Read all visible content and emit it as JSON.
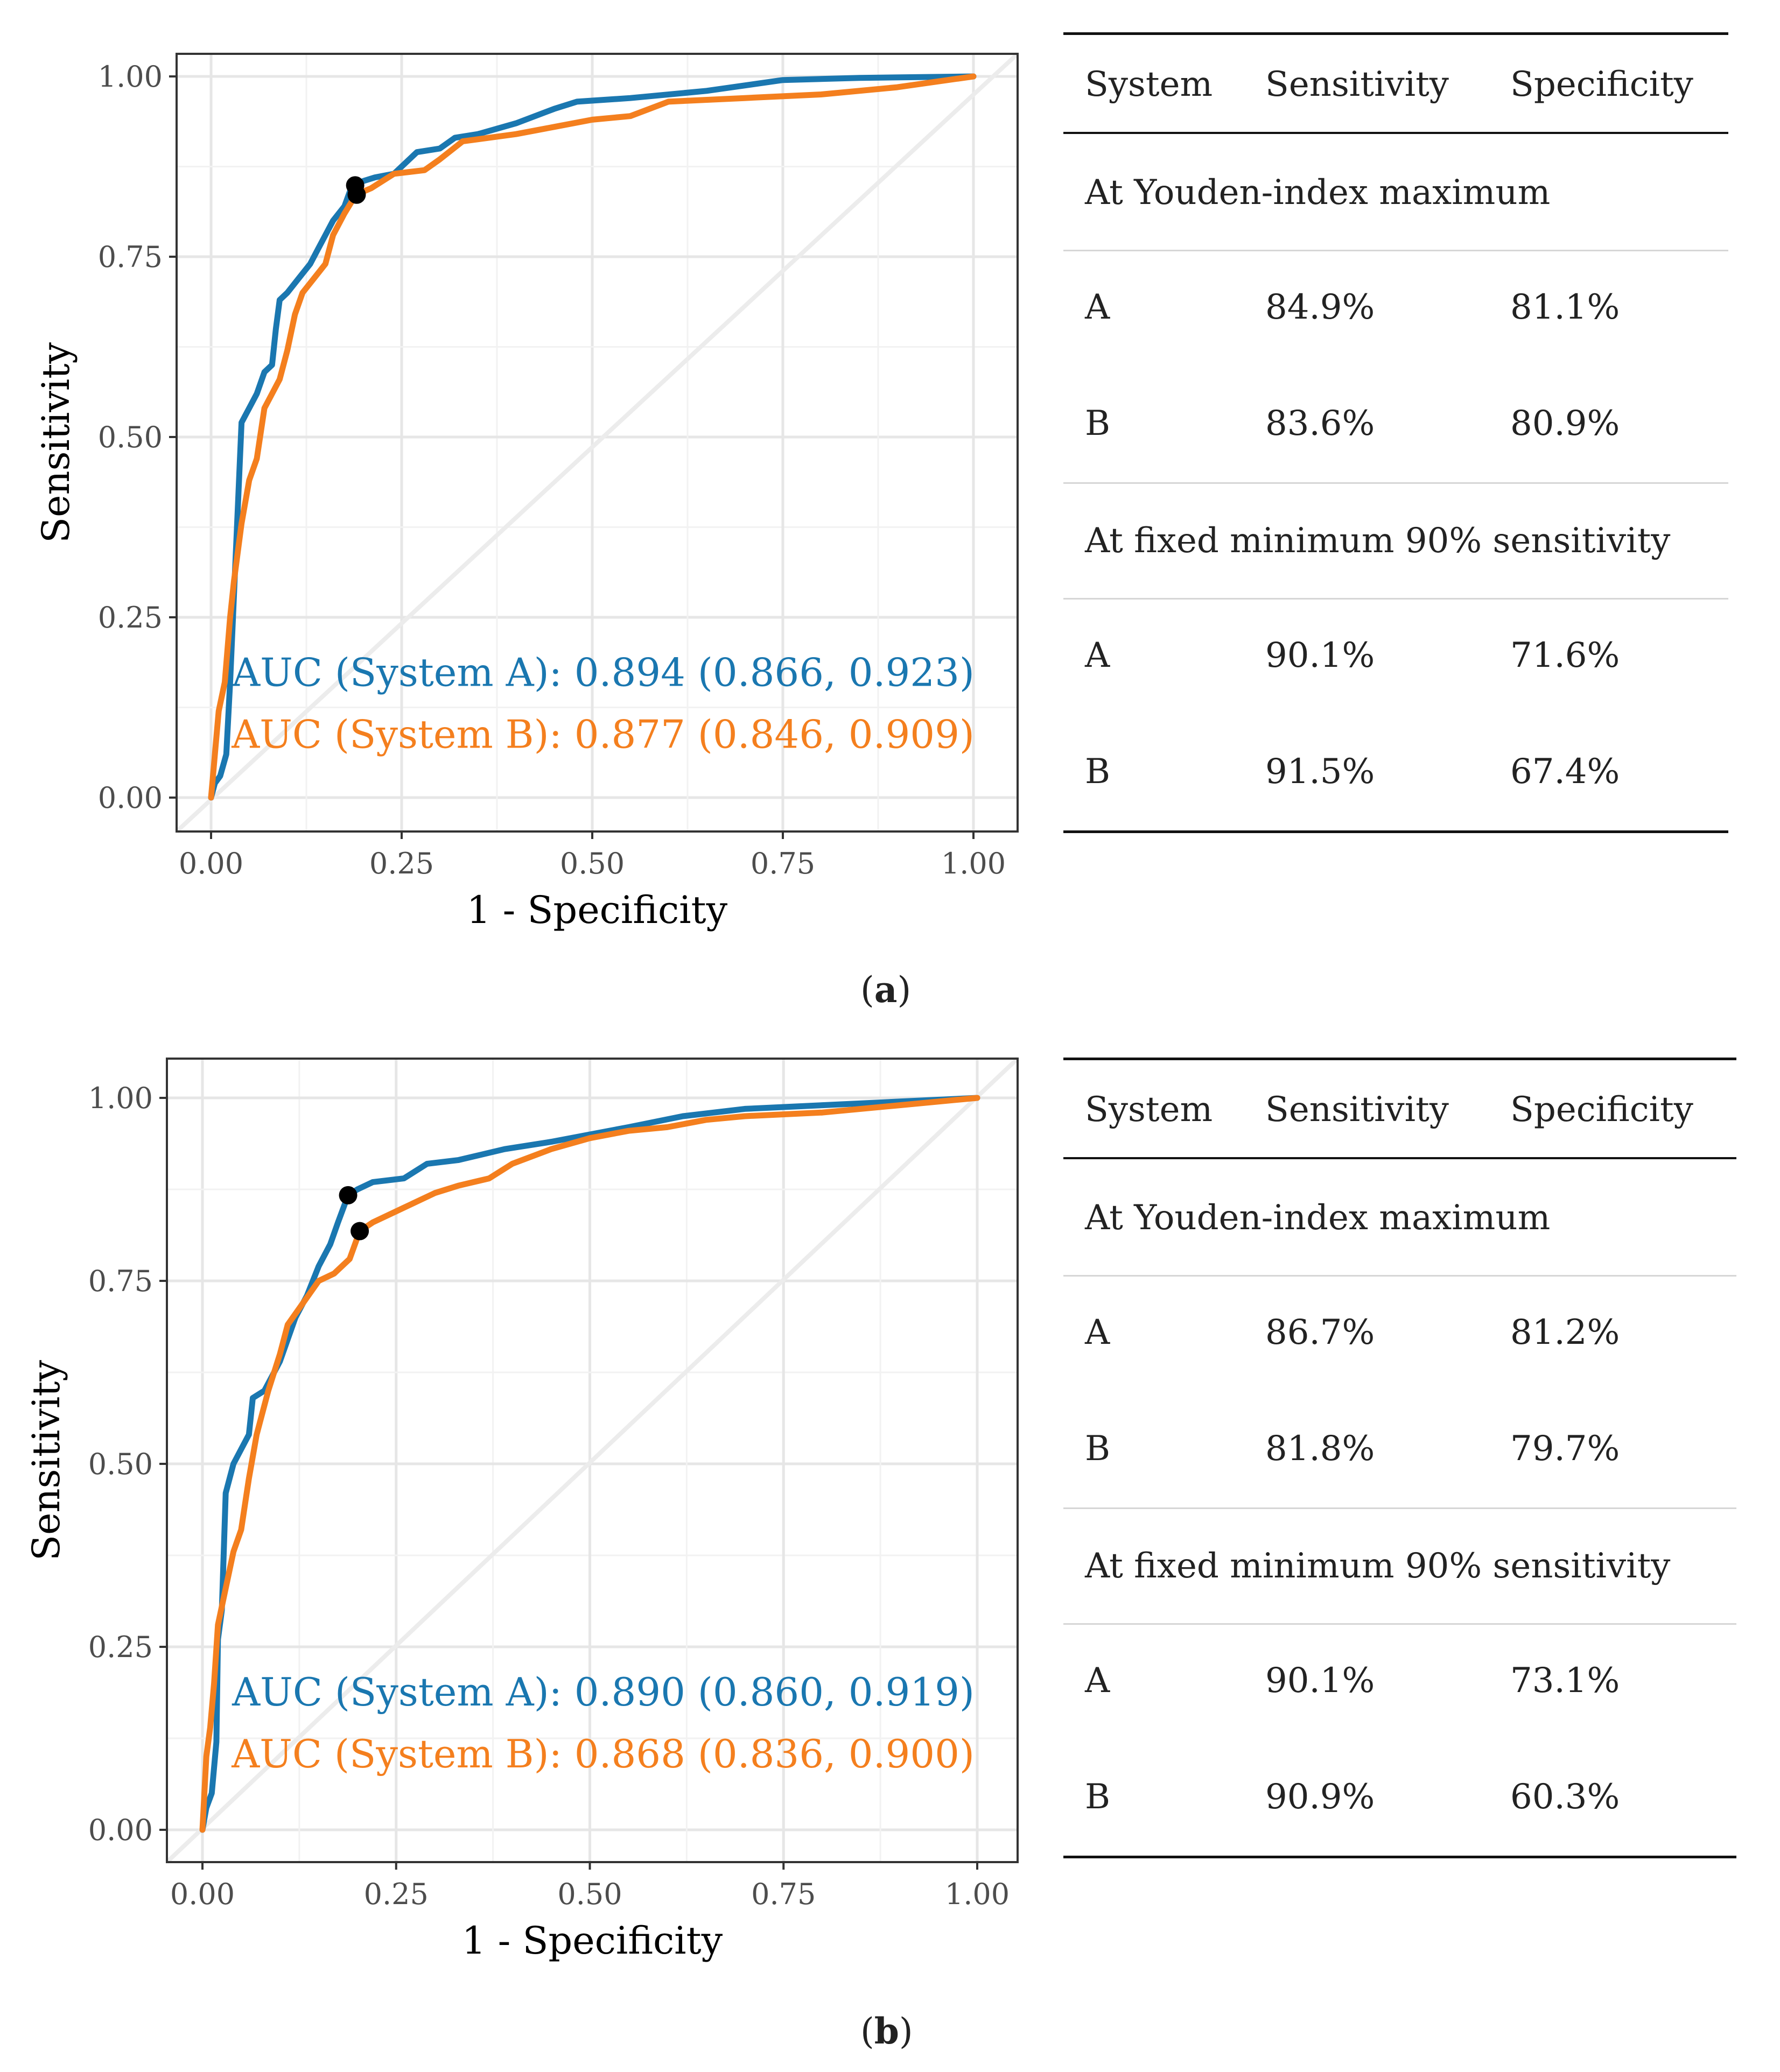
{
  "panels": [
    {
      "label": "a",
      "chart_data": {
        "type": "line",
        "title": "",
        "xlabel": "1 - Specificity",
        "ylabel": "Sensitivity",
        "xlim": [
          0,
          1
        ],
        "ylim": [
          0,
          1
        ],
        "xticks": [
          "0.00",
          "0.25",
          "0.50",
          "0.75",
          "1.00"
        ],
        "yticks": [
          "0.00",
          "0.25",
          "0.50",
          "0.75",
          "1.00"
        ],
        "grid": true,
        "diagonal": true,
        "series": [
          {
            "name": "System A",
            "color": "#1a77b0",
            "points": [
              [
                0,
                0
              ],
              [
                0.005,
                0.02
              ],
              [
                0.012,
                0.03
              ],
              [
                0.02,
                0.06
              ],
              [
                0.025,
                0.16
              ],
              [
                0.03,
                0.28
              ],
              [
                0.035,
                0.4
              ],
              [
                0.04,
                0.52
              ],
              [
                0.05,
                0.54
              ],
              [
                0.06,
                0.56
              ],
              [
                0.07,
                0.59
              ],
              [
                0.08,
                0.6
              ],
              [
                0.085,
                0.65
              ],
              [
                0.09,
                0.69
              ],
              [
                0.1,
                0.7
              ],
              [
                0.115,
                0.72
              ],
              [
                0.13,
                0.74
              ],
              [
                0.14,
                0.76
              ],
              [
                0.15,
                0.78
              ],
              [
                0.16,
                0.8
              ],
              [
                0.175,
                0.82
              ],
              [
                0.185,
                0.849
              ],
              [
                0.2,
                0.855
              ],
              [
                0.215,
                0.86
              ],
              [
                0.24,
                0.865
              ],
              [
                0.27,
                0.895
              ],
              [
                0.3,
                0.9
              ],
              [
                0.32,
                0.915
              ],
              [
                0.35,
                0.92
              ],
              [
                0.4,
                0.935
              ],
              [
                0.45,
                0.955
              ],
              [
                0.48,
                0.965
              ],
              [
                0.55,
                0.97
              ],
              [
                0.65,
                0.98
              ],
              [
                0.75,
                0.995
              ],
              [
                0.85,
                0.998
              ],
              [
                1,
                1
              ]
            ]
          },
          {
            "name": "System B",
            "color": "#f47f1e",
            "points": [
              [
                0,
                0
              ],
              [
                0.005,
                0.06
              ],
              [
                0.01,
                0.12
              ],
              [
                0.018,
                0.16
              ],
              [
                0.025,
                0.25
              ],
              [
                0.03,
                0.3
              ],
              [
                0.04,
                0.38
              ],
              [
                0.05,
                0.44
              ],
              [
                0.06,
                0.47
              ],
              [
                0.07,
                0.54
              ],
              [
                0.08,
                0.56
              ],
              [
                0.09,
                0.58
              ],
              [
                0.1,
                0.62
              ],
              [
                0.11,
                0.67
              ],
              [
                0.12,
                0.7
              ],
              [
                0.135,
                0.72
              ],
              [
                0.15,
                0.74
              ],
              [
                0.16,
                0.78
              ],
              [
                0.175,
                0.81
              ],
              [
                0.19,
                0.836
              ],
              [
                0.21,
                0.845
              ],
              [
                0.24,
                0.865
              ],
              [
                0.28,
                0.87
              ],
              [
                0.3,
                0.885
              ],
              [
                0.33,
                0.91
              ],
              [
                0.4,
                0.92
              ],
              [
                0.45,
                0.93
              ],
              [
                0.5,
                0.94
              ],
              [
                0.55,
                0.945
              ],
              [
                0.6,
                0.965
              ],
              [
                0.7,
                0.97
              ],
              [
                0.8,
                0.975
              ],
              [
                0.9,
                0.985
              ],
              [
                1,
                1
              ]
            ]
          }
        ],
        "markers": [
          {
            "series": "System A",
            "x": 0.189,
            "y": 0.849
          },
          {
            "series": "System B",
            "x": 0.191,
            "y": 0.836
          }
        ],
        "annotations": [
          {
            "text": "AUC (System A): 0.894 (0.866, 0.923)",
            "color": "#1a77b0"
          },
          {
            "text": "AUC (System B): 0.877 (0.846, 0.909)",
            "color": "#f47f1e"
          }
        ]
      },
      "table": {
        "headers": [
          "System",
          "Sensitivity",
          "Specificity"
        ],
        "sections": [
          {
            "title": "At Youden-index maximum",
            "rows": [
              [
                "A",
                "84.9%",
                "81.1%"
              ],
              [
                "B",
                "83.6%",
                "80.9%"
              ]
            ]
          },
          {
            "title": "At fixed minimum 90% sensitivity",
            "rows": [
              [
                "A",
                "90.1%",
                "71.6%"
              ],
              [
                "B",
                "91.5%",
                "67.4%"
              ]
            ]
          }
        ]
      }
    },
    {
      "label": "b",
      "chart_data": {
        "type": "line",
        "title": "",
        "xlabel": "1 - Specificity",
        "ylabel": "Sensitivity",
        "xlim": [
          0,
          1
        ],
        "ylim": [
          0,
          1
        ],
        "xticks": [
          "0.00",
          "0.25",
          "0.50",
          "0.75",
          "1.00"
        ],
        "yticks": [
          "0.00",
          "0.25",
          "0.50",
          "0.75",
          "1.00"
        ],
        "grid": true,
        "diagonal": true,
        "series": [
          {
            "name": "System A",
            "color": "#1a77b0",
            "points": [
              [
                0,
                0
              ],
              [
                0.005,
                0.03
              ],
              [
                0.012,
                0.05
              ],
              [
                0.018,
                0.12
              ],
              [
                0.02,
                0.26
              ],
              [
                0.025,
                0.3
              ],
              [
                0.03,
                0.46
              ],
              [
                0.04,
                0.5
              ],
              [
                0.05,
                0.52
              ],
              [
                0.06,
                0.54
              ],
              [
                0.065,
                0.59
              ],
              [
                0.08,
                0.6
              ],
              [
                0.09,
                0.62
              ],
              [
                0.1,
                0.64
              ],
              [
                0.11,
                0.67
              ],
              [
                0.12,
                0.7
              ],
              [
                0.135,
                0.73
              ],
              [
                0.15,
                0.77
              ],
              [
                0.165,
                0.8
              ],
              [
                0.175,
                0.83
              ],
              [
                0.188,
                0.867
              ],
              [
                0.2,
                0.875
              ],
              [
                0.22,
                0.885
              ],
              [
                0.26,
                0.89
              ],
              [
                0.29,
                0.91
              ],
              [
                0.33,
                0.915
              ],
              [
                0.39,
                0.93
              ],
              [
                0.45,
                0.94
              ],
              [
                0.5,
                0.95
              ],
              [
                0.55,
                0.96
              ],
              [
                0.62,
                0.975
              ],
              [
                0.7,
                0.985
              ],
              [
                0.8,
                0.99
              ],
              [
                0.9,
                0.995
              ],
              [
                1,
                1
              ]
            ]
          },
          {
            "name": "System B",
            "color": "#f47f1e",
            "points": [
              [
                0,
                0
              ],
              [
                0.005,
                0.1
              ],
              [
                0.01,
                0.14
              ],
              [
                0.015,
                0.2
              ],
              [
                0.02,
                0.28
              ],
              [
                0.03,
                0.33
              ],
              [
                0.04,
                0.38
              ],
              [
                0.05,
                0.41
              ],
              [
                0.06,
                0.48
              ],
              [
                0.07,
                0.54
              ],
              [
                0.085,
                0.6
              ],
              [
                0.1,
                0.65
              ],
              [
                0.11,
                0.69
              ],
              [
                0.13,
                0.72
              ],
              [
                0.15,
                0.75
              ],
              [
                0.17,
                0.76
              ],
              [
                0.19,
                0.78
              ],
              [
                0.203,
                0.818
              ],
              [
                0.22,
                0.83
              ],
              [
                0.26,
                0.85
              ],
              [
                0.3,
                0.87
              ],
              [
                0.33,
                0.88
              ],
              [
                0.37,
                0.89
              ],
              [
                0.4,
                0.91
              ],
              [
                0.45,
                0.93
              ],
              [
                0.5,
                0.945
              ],
              [
                0.55,
                0.955
              ],
              [
                0.6,
                0.96
              ],
              [
                0.65,
                0.97
              ],
              [
                0.7,
                0.975
              ],
              [
                0.8,
                0.98
              ],
              [
                0.9,
                0.99
              ],
              [
                1,
                1
              ]
            ]
          }
        ],
        "markers": [
          {
            "series": "System A",
            "x": 0.188,
            "y": 0.867
          },
          {
            "series": "System B",
            "x": 0.203,
            "y": 0.818
          }
        ],
        "annotations": [
          {
            "text": "AUC (System A): 0.890 (0.860, 0.919)",
            "color": "#1a77b0"
          },
          {
            "text": "AUC (System B): 0.868 (0.836, 0.900)",
            "color": "#f47f1e"
          }
        ]
      },
      "table": {
        "headers": [
          "System",
          "Sensitivity",
          "Specificity"
        ],
        "sections": [
          {
            "title": "At Youden-index maximum",
            "rows": [
              [
                "A",
                "86.7%",
                "81.2%"
              ],
              [
                "B",
                "81.8%",
                "79.7%"
              ]
            ]
          },
          {
            "title": "At fixed minimum 90% sensitivity",
            "rows": [
              [
                "A",
                "90.1%",
                "73.1%"
              ],
              [
                "B",
                "90.9%",
                "60.3%"
              ]
            ]
          }
        ]
      }
    }
  ]
}
